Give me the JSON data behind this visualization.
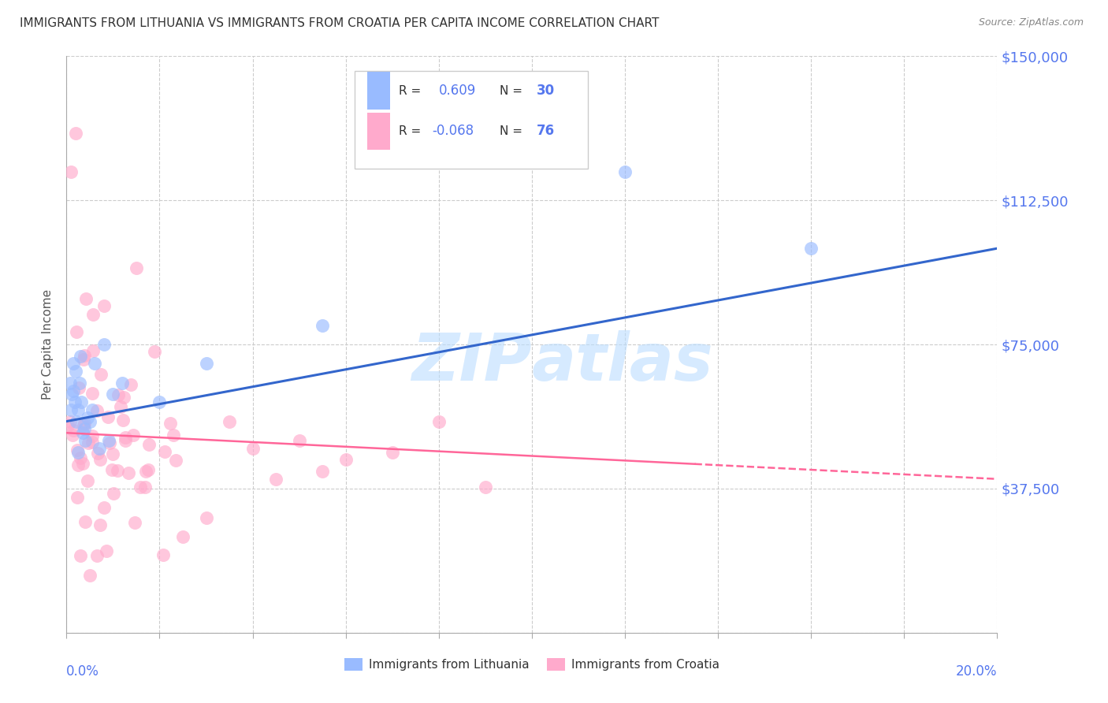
{
  "title": "IMMIGRANTS FROM LITHUANIA VS IMMIGRANTS FROM CROATIA PER CAPITA INCOME CORRELATION CHART",
  "source": "Source: ZipAtlas.com",
  "ylabel": "Per Capita Income",
  "yticks": [
    0,
    37500,
    75000,
    112500,
    150000
  ],
  "ytick_labels": [
    "",
    "$37,500",
    "$75,000",
    "$112,500",
    "$150,000"
  ],
  "xmin": 0.0,
  "xmax": 0.2,
  "ymin": 0,
  "ymax": 150000,
  "color_blue": "#99BBFF",
  "color_pink": "#FFAACC",
  "color_blue_line": "#3366CC",
  "color_pink_line": "#FF6699",
  "color_yaxis_labels": "#5577EE",
  "watermark_color": "#BBDDFF",
  "legend_label_blue": "Immigrants from Lithuania",
  "legend_label_pink": "Immigrants from Croatia",
  "lith_line_x0": 0.0,
  "lith_line_y0": 55000,
  "lith_line_x1": 0.2,
  "lith_line_y1": 100000,
  "cro_line_x0": 0.0,
  "cro_line_y0": 52000,
  "cro_line_x1": 0.2,
  "cro_line_y1": 40000
}
